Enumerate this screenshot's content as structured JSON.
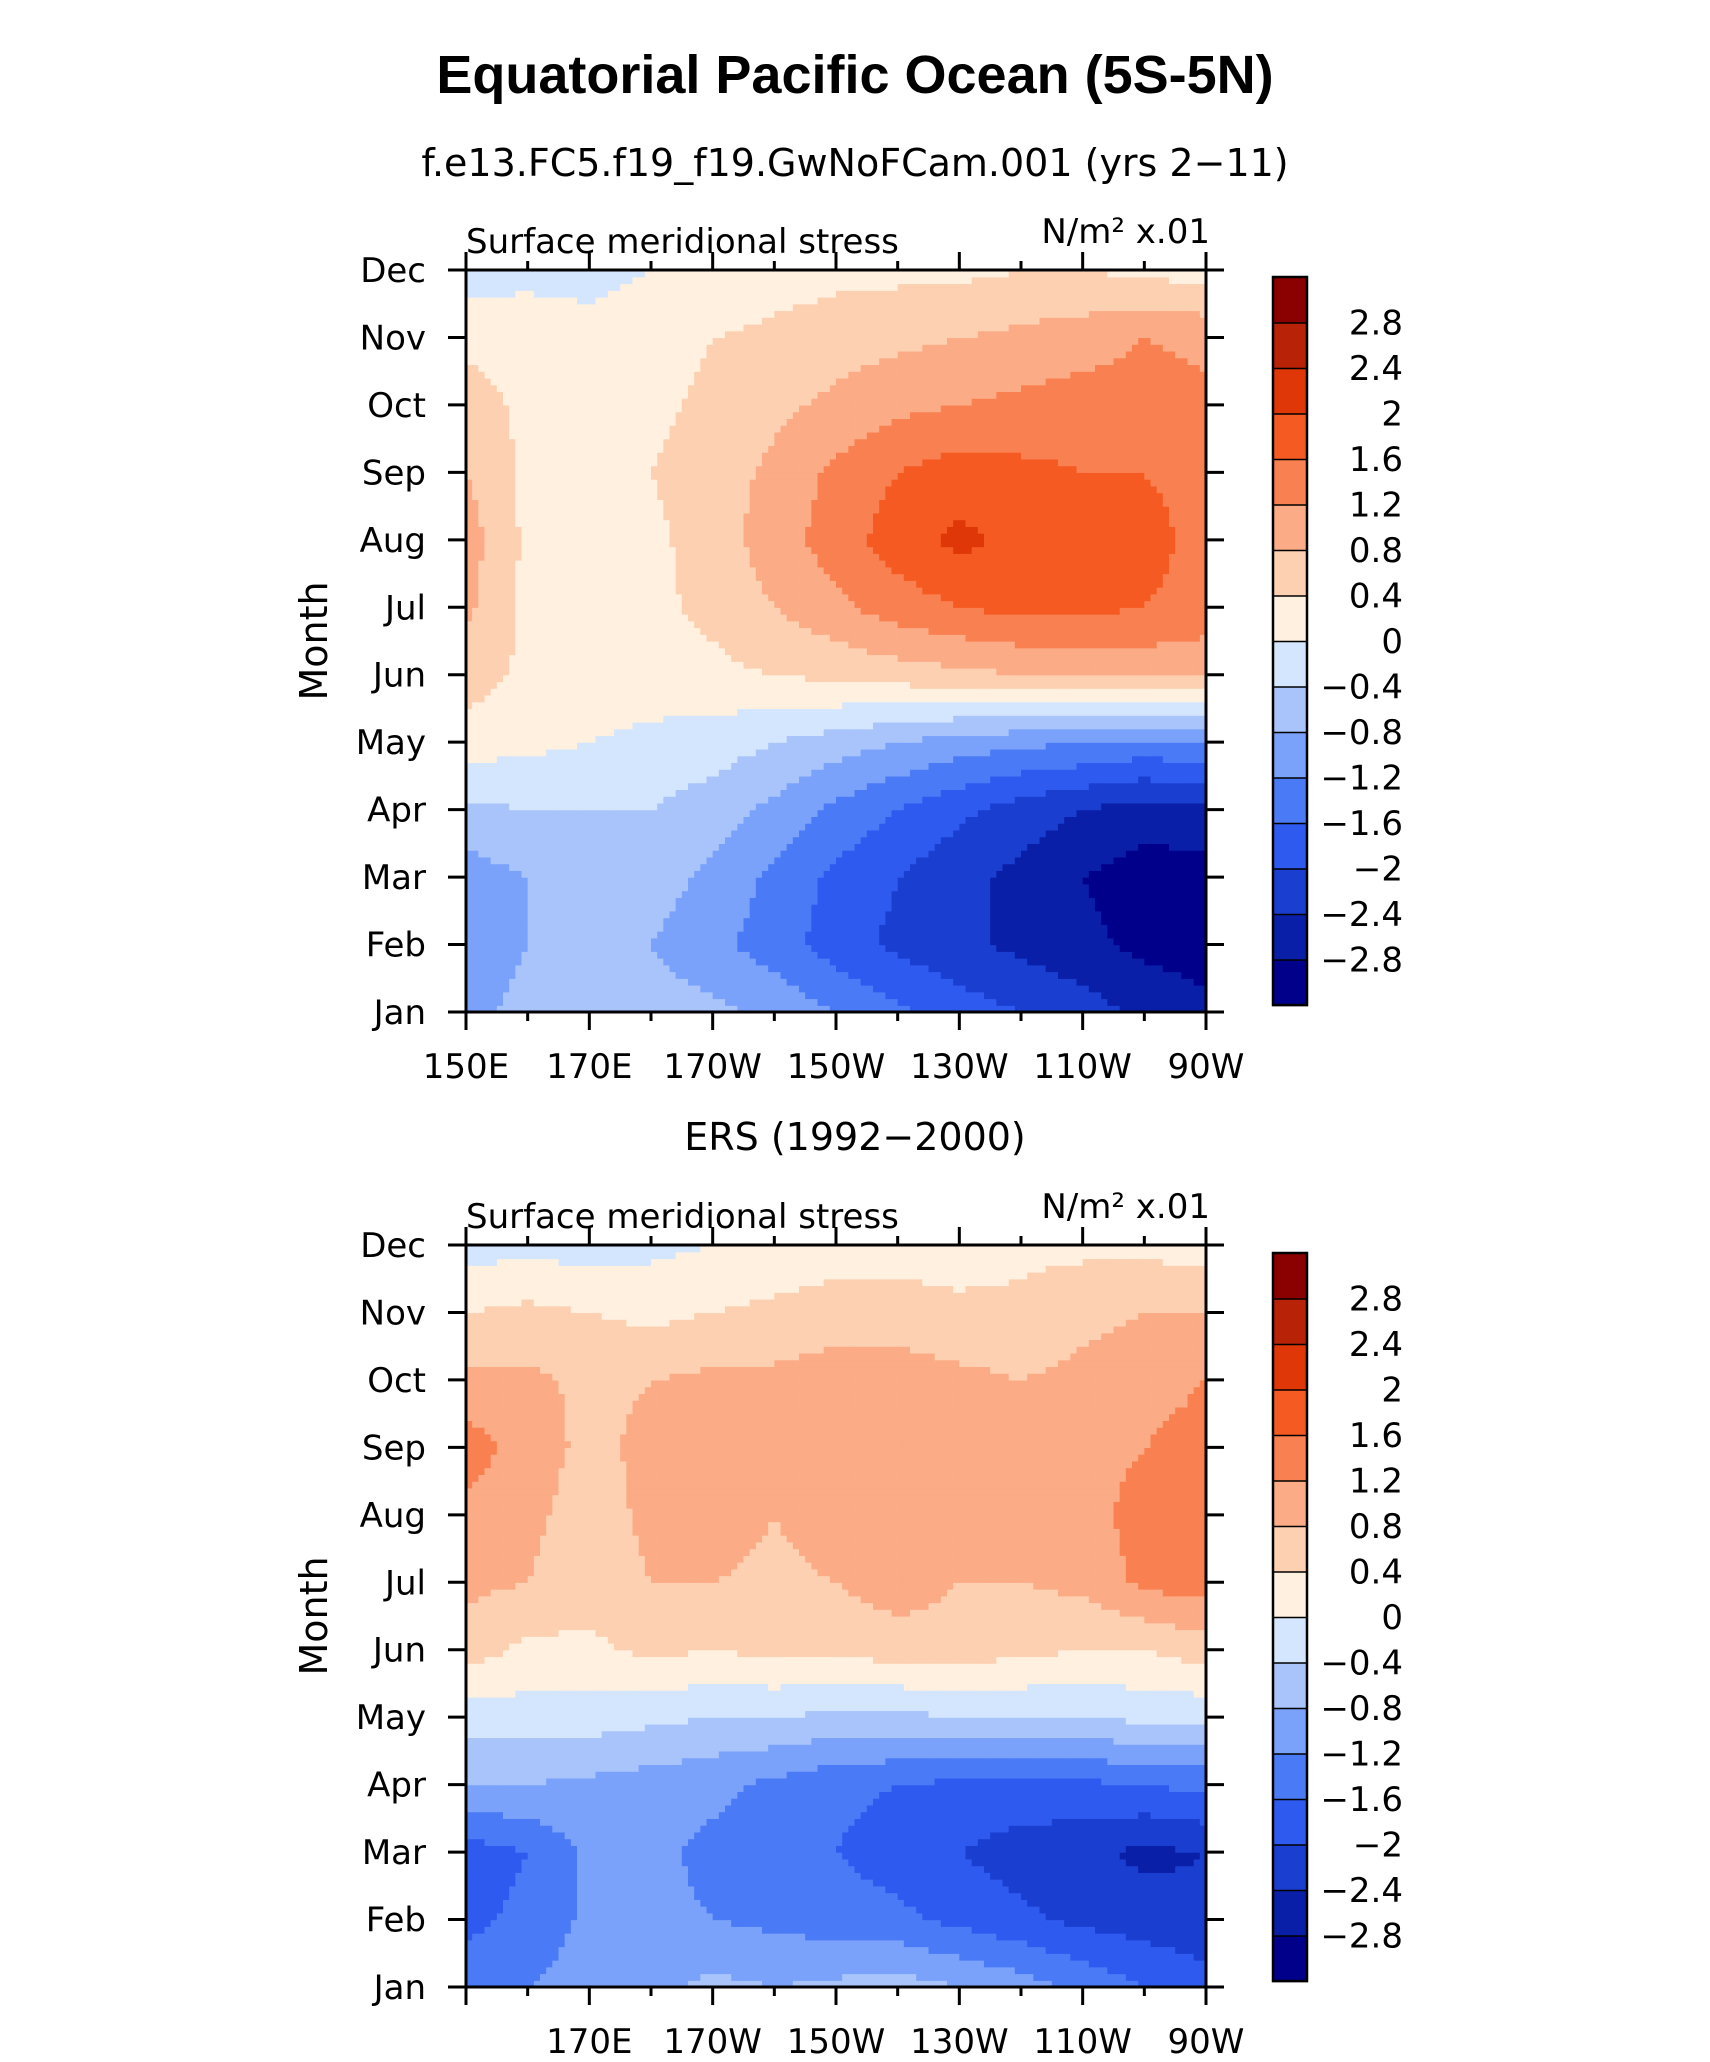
{
  "figure": {
    "title": "Equatorial Pacific Ocean (5S-5N)"
  },
  "colorbar": {
    "colors": [
      "#00008b",
      "#0a1fa8",
      "#1a3fd0",
      "#2f5af0",
      "#4a7af5",
      "#7ba2fa",
      "#a8c4fb",
      "#d4e5fe",
      "#fff0e0",
      "#fdd0b2",
      "#fbab85",
      "#f98050",
      "#f55a22",
      "#e03708",
      "#b82206",
      "#8b0000"
    ],
    "tick_labels": [
      "2.8",
      "2.4",
      "2",
      "1.6",
      "1.2",
      "0.8",
      "0.4",
      "0",
      "−0.4",
      "−0.8",
      "−1.2",
      "−1.6",
      "−2",
      "−2.4",
      "−2.8"
    ]
  },
  "chart_data": [
    {
      "type": "heatmap",
      "title": "f.e13.FC5.f19_f19.GwNoFCam.001 (yrs 2−11)",
      "left_string": "Surface meridional stress",
      "right_string": "N/m² x.01",
      "ylabel": "Month",
      "x_tick_labels": [
        "150E",
        "170E",
        "170W",
        "150W",
        "130W",
        "110W",
        "90W"
      ],
      "y_tick_labels": [
        "Jan",
        "Feb",
        "Mar",
        "Apr",
        "May",
        "Jun",
        "Jul",
        "Aug",
        "Sep",
        "Oct",
        "Nov",
        "Dec"
      ],
      "x_range_deg_east": [
        150,
        270
      ],
      "levels": [
        -2.8,
        -2.4,
        -2.0,
        -1.6,
        -1.2,
        -0.8,
        -0.4,
        0,
        0.4,
        0.8,
        1.2,
        1.6,
        2.0,
        2.4,
        2.8
      ],
      "lon": [
        150,
        160,
        170,
        180,
        190,
        200,
        210,
        220,
        230,
        240,
        250,
        260,
        270
      ],
      "months": [
        "Jan",
        "Feb",
        "Mar",
        "Apr",
        "May",
        "Jun",
        "Jul",
        "Aug",
        "Sep",
        "Oct",
        "Nov",
        "Dec"
      ],
      "values": [
        [
          -0.9,
          -0.7,
          -0.7,
          -0.6,
          -0.7,
          -0.9,
          -1.2,
          -1.5,
          -1.8,
          -2.0,
          -2.2,
          -2.5,
          -2.7
        ],
        [
          -1.0,
          -0.8,
          -0.8,
          -0.8,
          -1.1,
          -1.4,
          -1.8,
          -2.1,
          -2.3,
          -2.5,
          -2.7,
          -2.9,
          -3.0
        ],
        [
          -1.0,
          -0.8,
          -0.6,
          -0.6,
          -0.9,
          -1.3,
          -1.7,
          -2.0,
          -2.3,
          -2.5,
          -2.8,
          -3.0,
          -3.0
        ],
        [
          -0.5,
          -0.4,
          -0.4,
          -0.4,
          -0.6,
          -0.9,
          -1.3,
          -1.6,
          -1.9,
          -2.2,
          -2.4,
          -2.6,
          -2.5
        ],
        [
          0.2,
          0.1,
          0.0,
          -0.1,
          -0.2,
          -0.4,
          -0.6,
          -0.8,
          -1.0,
          -1.1,
          -1.2,
          -1.3,
          -1.2
        ],
        [
          0.6,
          0.3,
          0.2,
          0.2,
          0.3,
          0.4,
          0.5,
          0.6,
          0.7,
          0.8,
          0.9,
          0.9,
          0.8
        ],
        [
          0.9,
          0.3,
          0.3,
          0.3,
          0.5,
          0.8,
          1.1,
          1.4,
          1.6,
          1.7,
          1.7,
          1.6,
          1.5
        ],
        [
          1.0,
          0.3,
          0.3,
          0.3,
          0.6,
          1.0,
          1.4,
          1.8,
          2.1,
          1.9,
          1.8,
          1.7,
          1.5
        ],
        [
          0.8,
          0.3,
          0.2,
          0.4,
          0.6,
          0.9,
          1.3,
          1.6,
          1.8,
          1.7,
          1.6,
          1.6,
          1.5
        ],
        [
          0.6,
          0.3,
          0.2,
          0.3,
          0.5,
          0.7,
          0.9,
          1.1,
          1.2,
          1.3,
          1.4,
          1.4,
          1.3
        ],
        [
          0.3,
          0.2,
          0.1,
          0.2,
          0.4,
          0.5,
          0.6,
          0.7,
          0.8,
          0.9,
          1.0,
          1.2,
          1.1
        ],
        [
          -0.2,
          -0.1,
          -0.1,
          0.0,
          0.1,
          0.2,
          0.3,
          0.3,
          0.3,
          0.4,
          0.4,
          0.3,
          0.2
        ]
      ]
    },
    {
      "type": "heatmap",
      "title": "ERS (1992−2000)",
      "left_string": "Surface meridional stress",
      "right_string": "N/m² x.01",
      "ylabel": "Month",
      "x_tick_labels": [
        "170E",
        "170W",
        "150W",
        "130W",
        "110W",
        "90W"
      ],
      "y_tick_labels": [
        "Jan",
        "Feb",
        "Mar",
        "Apr",
        "May",
        "Jun",
        "Jul",
        "Aug",
        "Sep",
        "Oct",
        "Nov",
        "Dec"
      ],
      "x_range_deg_east": [
        150,
        270
      ],
      "levels": [
        -2.8,
        -2.4,
        -2.0,
        -1.6,
        -1.2,
        -0.8,
        -0.4,
        0,
        0.4,
        0.8,
        1.2,
        1.6,
        2.0,
        2.4,
        2.8
      ],
      "lon": [
        150,
        160,
        170,
        180,
        190,
        200,
        210,
        220,
        230,
        240,
        250,
        260,
        270
      ],
      "months": [
        "Jan",
        "Feb",
        "Mar",
        "Apr",
        "May",
        "Jun",
        "Jul",
        "Aug",
        "Sep",
        "Oct",
        "Nov",
        "Dec"
      ],
      "values": [
        [
          -1.4,
          -1.2,
          -1.0,
          -0.9,
          -0.7,
          -0.8,
          -0.7,
          -0.6,
          -0.8,
          -1.0,
          -1.3,
          -1.6,
          -1.8
        ],
        [
          -1.7,
          -1.5,
          -1.1,
          -1.1,
          -1.2,
          -1.3,
          -1.4,
          -1.5,
          -1.7,
          -1.9,
          -2.1,
          -2.2,
          -2.3
        ],
        [
          -1.8,
          -1.6,
          -1.1,
          -1.1,
          -1.3,
          -1.4,
          -1.6,
          -1.8,
          -2.0,
          -2.2,
          -2.3,
          -2.5,
          -2.4
        ],
        [
          -0.8,
          -0.8,
          -0.9,
          -1.0,
          -1.1,
          -1.3,
          -1.5,
          -1.6,
          -1.7,
          -1.7,
          -1.7,
          -1.6,
          -1.5
        ],
        [
          -0.2,
          -0.2,
          -0.2,
          -0.3,
          -0.4,
          -0.4,
          -0.5,
          -0.5,
          -0.4,
          -0.4,
          -0.4,
          -0.3,
          -0.3
        ],
        [
          0.6,
          0.3,
          0.3,
          0.5,
          0.4,
          0.5,
          0.5,
          0.6,
          0.6,
          0.5,
          0.4,
          0.4,
          0.6
        ],
        [
          0.9,
          0.8,
          0.6,
          0.8,
          0.8,
          0.7,
          0.8,
          1.0,
          0.8,
          0.8,
          0.9,
          1.3,
          1.4
        ],
        [
          1.1,
          0.9,
          0.6,
          0.9,
          1.0,
          0.8,
          1.0,
          1.1,
          1.0,
          0.9,
          1.0,
          1.4,
          1.5
        ],
        [
          1.4,
          1.0,
          0.7,
          0.9,
          1.0,
          0.9,
          1.0,
          1.1,
          1.0,
          0.9,
          1.0,
          1.2,
          1.4
        ],
        [
          0.9,
          0.9,
          0.7,
          0.8,
          0.9,
          0.9,
          1.0,
          1.0,
          0.9,
          0.8,
          0.9,
          1.0,
          1.2
        ],
        [
          0.4,
          0.5,
          0.4,
          0.3,
          0.4,
          0.5,
          0.6,
          0.6,
          0.5,
          0.5,
          0.7,
          0.8,
          0.8
        ],
        [
          -0.2,
          -0.1,
          -0.2,
          -0.1,
          0.0,
          0.1,
          0.2,
          0.2,
          0.2,
          0.3,
          0.3,
          0.3,
          0.2
        ]
      ]
    }
  ]
}
